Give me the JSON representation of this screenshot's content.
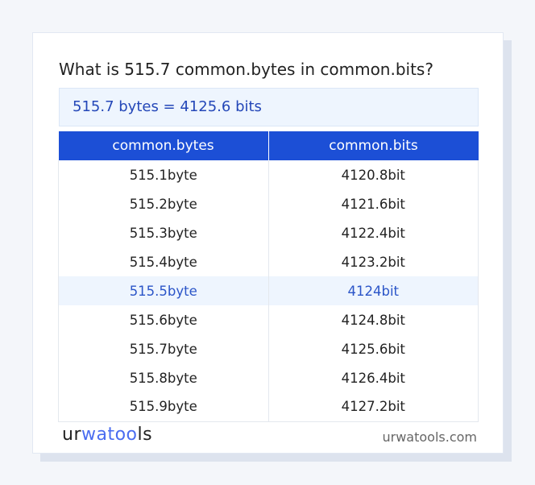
{
  "title": "What is 515.7 common.bytes in common.bits?",
  "result": "515.7 bytes = 4125.6 bits",
  "table": {
    "headers": [
      "common.bytes",
      "common.bits"
    ],
    "rows": [
      [
        "515.1byte",
        "4120.8bit"
      ],
      [
        "515.2byte",
        "4121.6bit"
      ],
      [
        "515.3byte",
        "4122.4bit"
      ],
      [
        "515.4byte",
        "4123.2bit"
      ],
      [
        "515.5byte",
        "4124bit"
      ],
      [
        "515.6byte",
        "4124.8bit"
      ],
      [
        "515.7byte",
        "4125.6bit"
      ],
      [
        "515.8byte",
        "4126.4bit"
      ],
      [
        "515.9byte",
        "4127.2bit"
      ]
    ],
    "highlighted_row": 4
  },
  "footer": {
    "logo_a": "ur",
    "logo_b": "watoo",
    "logo_c": "ls",
    "site": "urwatools.com"
  },
  "colors": {
    "accent": "#1c4fd6",
    "highlight_bg": "#eef5fe"
  }
}
